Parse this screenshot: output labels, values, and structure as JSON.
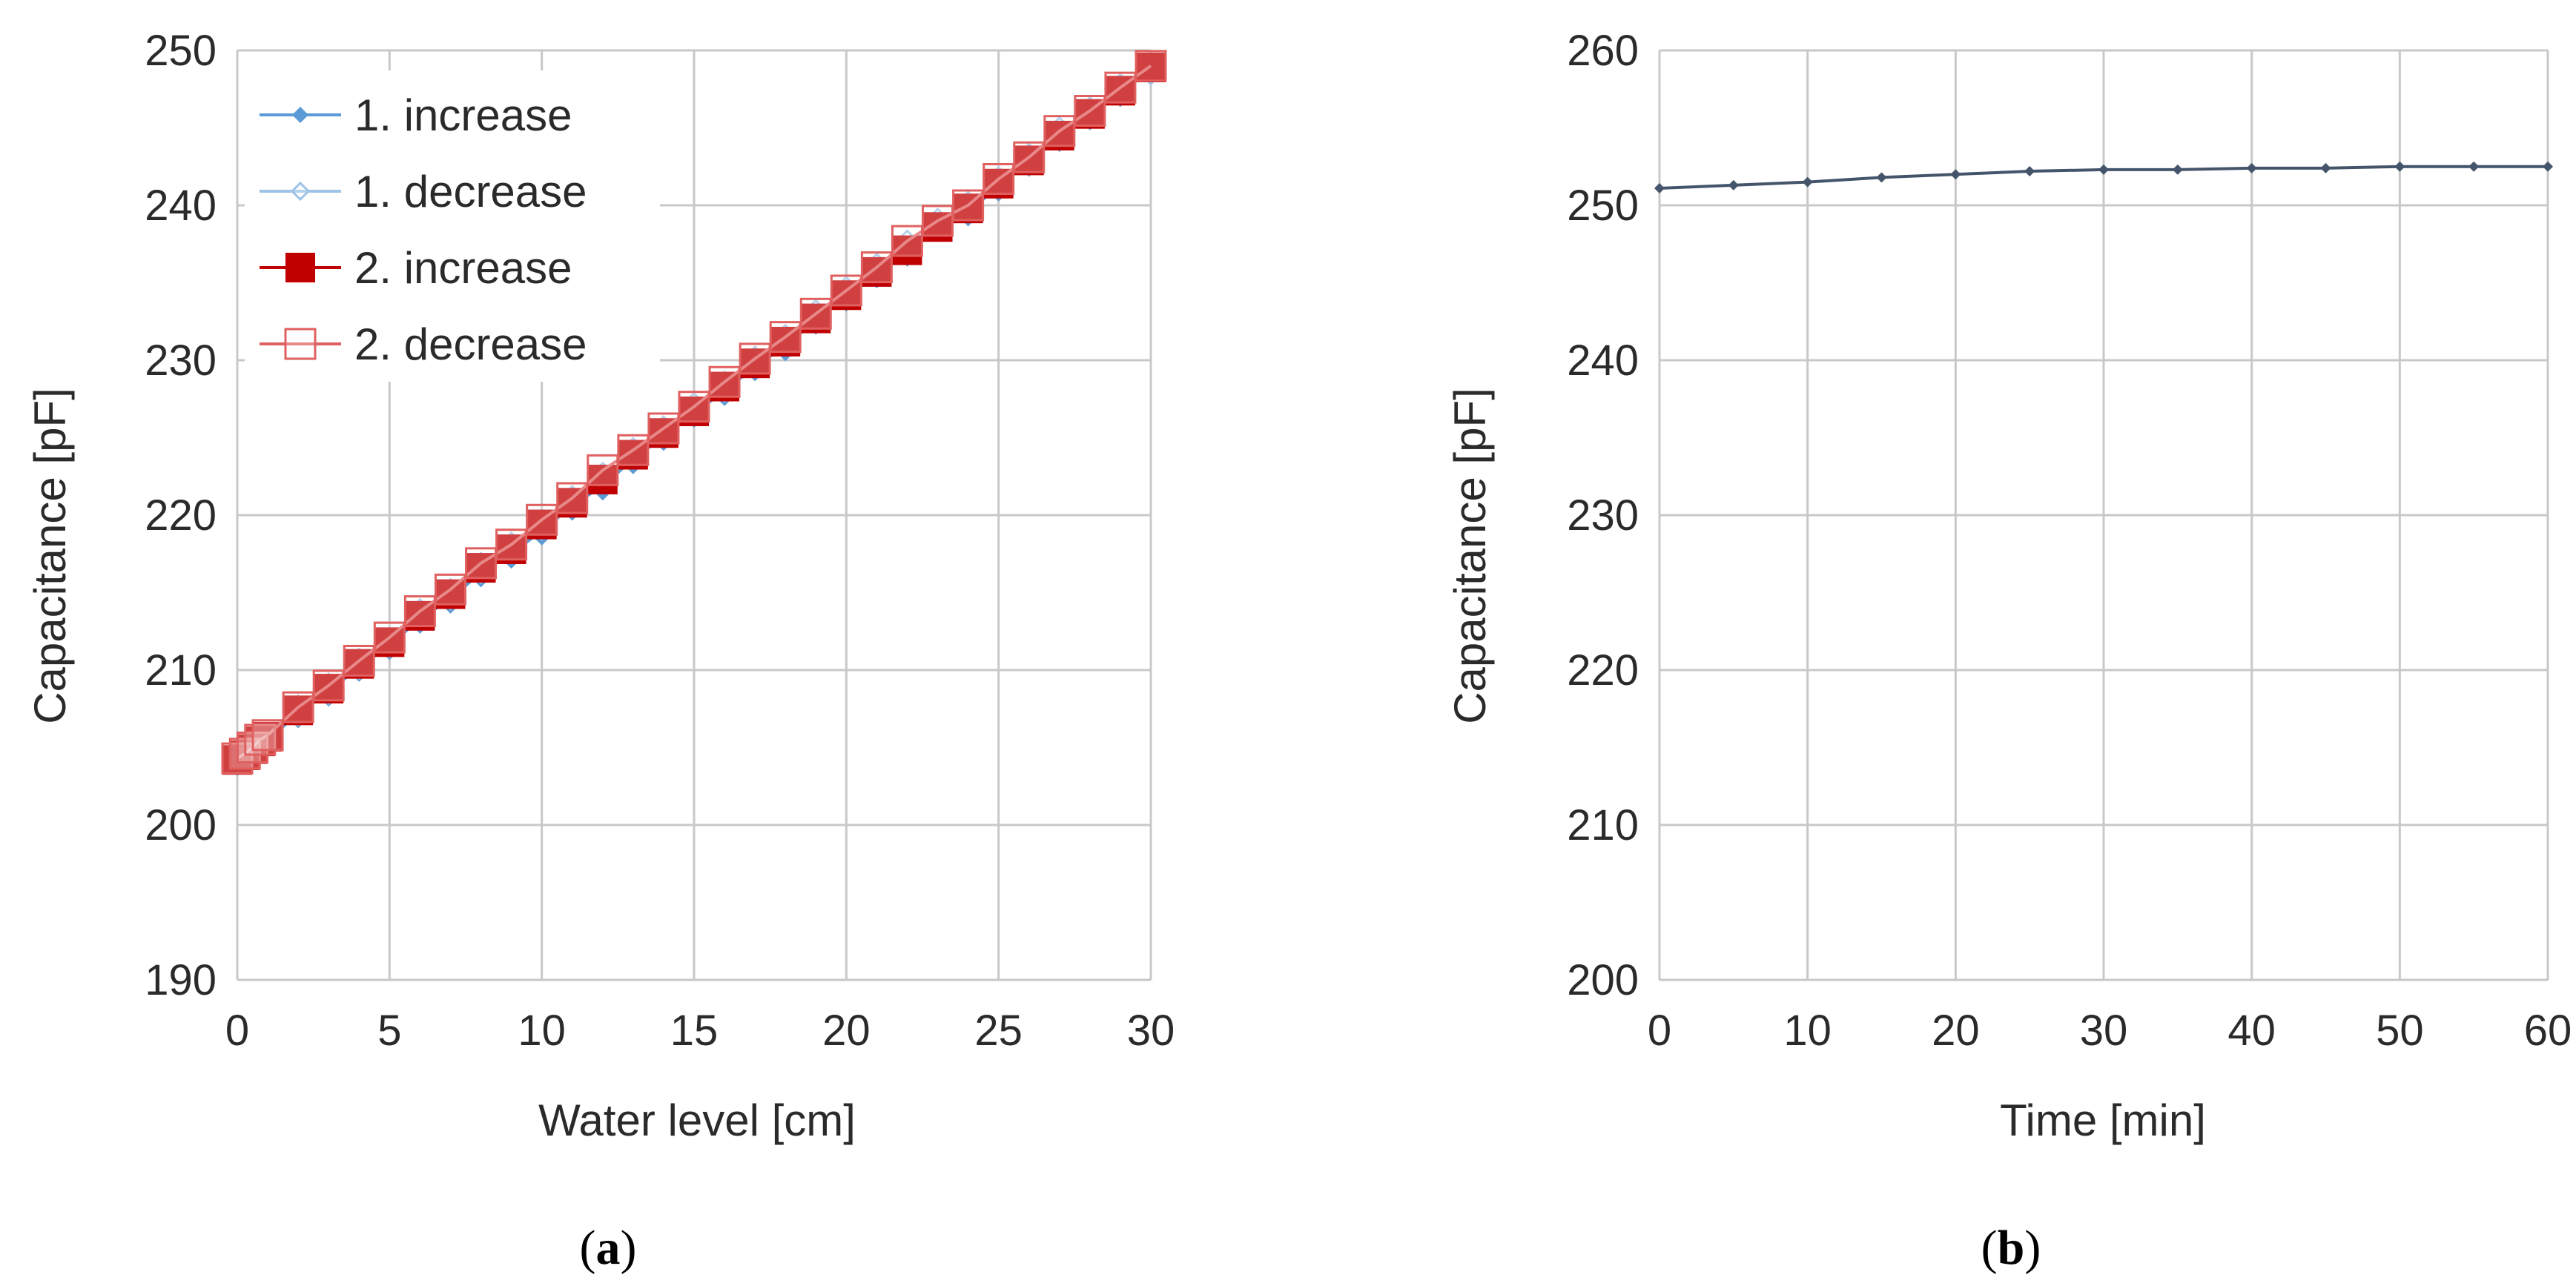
{
  "chart_data": [
    {
      "panel": "a",
      "type": "line",
      "title": "",
      "xlabel": "Water level [cm]",
      "ylabel": "Capacitance [pF]",
      "xlim": [
        0,
        30
      ],
      "ylim": [
        190,
        250
      ],
      "xticks": [
        0,
        5,
        10,
        15,
        20,
        25,
        30
      ],
      "yticks": [
        190,
        200,
        210,
        220,
        230,
        240,
        250
      ],
      "grid": true,
      "legend_position": "top-left",
      "series": [
        {
          "name": "1. increase",
          "color": "#5b9bd5",
          "marker": "filled-diamond",
          "x": [
            0,
            0.25,
            0.5,
            0.75,
            1,
            2,
            3,
            4,
            5,
            6,
            7,
            8,
            9,
            10,
            11,
            12,
            13,
            14,
            15,
            16,
            17,
            18,
            19,
            20,
            21,
            22,
            23,
            24,
            25,
            26,
            27,
            28,
            29,
            30
          ],
          "y": [
            204.1,
            204.3,
            204.7,
            205.1,
            205.5,
            207.2,
            208.6,
            210.2,
            211.6,
            213.3,
            214.6,
            216.3,
            217.5,
            219.0,
            220.6,
            221.9,
            223.6,
            225.1,
            226.6,
            228.0,
            229.6,
            230.9,
            232.6,
            234.1,
            235.6,
            237.0,
            238.6,
            239.6,
            241.2,
            242.8,
            244.4,
            245.8,
            247.3,
            248.7
          ]
        },
        {
          "name": "1. decrease",
          "color": "#9dc3e6",
          "marker": "open-diamond",
          "x": [
            0,
            0.25,
            0.5,
            0.75,
            1,
            2,
            3,
            4,
            5,
            6,
            7,
            8,
            9,
            10,
            11,
            12,
            13,
            14,
            15,
            16,
            17,
            18,
            19,
            20,
            21,
            22,
            23,
            24,
            25,
            26,
            27,
            28,
            29,
            30
          ],
          "y": [
            204.2,
            204.4,
            204.8,
            205.3,
            205.6,
            207.4,
            208.8,
            210.4,
            211.8,
            213.6,
            214.9,
            216.6,
            217.9,
            219.4,
            220.9,
            222.4,
            224.0,
            225.4,
            226.9,
            228.3,
            229.9,
            231.3,
            232.9,
            234.4,
            235.9,
            237.4,
            238.8,
            239.9,
            241.5,
            243.0,
            244.7,
            246.0,
            247.5,
            248.8
          ]
        },
        {
          "name": "2. increase",
          "color": "#c00000",
          "marker": "filled-square",
          "x": [
            0,
            0.25,
            0.5,
            0.75,
            1,
            2,
            3,
            4,
            5,
            6,
            7,
            8,
            9,
            10,
            11,
            12,
            13,
            14,
            15,
            16,
            17,
            18,
            19,
            20,
            21,
            22,
            23,
            24,
            25,
            26,
            27,
            28,
            29,
            30
          ],
          "y": [
            204.2,
            204.5,
            204.9,
            205.4,
            205.7,
            207.4,
            208.8,
            210.4,
            211.8,
            213.5,
            214.9,
            216.6,
            217.8,
            219.4,
            220.8,
            222.3,
            223.9,
            225.3,
            226.7,
            228.3,
            229.8,
            231.2,
            232.7,
            234.2,
            235.7,
            237.1,
            238.6,
            239.8,
            241.4,
            242.9,
            244.5,
            245.9,
            247.4,
            248.9
          ]
        },
        {
          "name": "2. decrease",
          "color": "#e06060",
          "marker": "open-square",
          "x": [
            0,
            0.25,
            0.5,
            0.75,
            1,
            2,
            3,
            4,
            5,
            6,
            7,
            8,
            9,
            10,
            11,
            12,
            13,
            14,
            15,
            16,
            17,
            18,
            19,
            20,
            21,
            22,
            23,
            24,
            25,
            26,
            27,
            28,
            29,
            30
          ],
          "y": [
            204.3,
            204.6,
            205.0,
            205.5,
            205.8,
            207.6,
            209.0,
            210.6,
            212.1,
            213.8,
            215.2,
            216.9,
            218.1,
            219.7,
            221.1,
            222.9,
            224.2,
            225.6,
            227.0,
            228.6,
            230.1,
            231.5,
            233.0,
            234.5,
            236.0,
            237.7,
            239.0,
            240.0,
            241.7,
            243.1,
            244.8,
            246.1,
            247.6,
            249.0
          ]
        }
      ]
    },
    {
      "panel": "b",
      "type": "line",
      "title": "",
      "xlabel": "Time [min]",
      "ylabel": "Capacitance [pF]",
      "xlim": [
        0,
        60
      ],
      "ylim": [
        200,
        260
      ],
      "xticks": [
        0,
        10,
        20,
        30,
        40,
        50,
        60
      ],
      "yticks": [
        200,
        210,
        220,
        230,
        240,
        250,
        260
      ],
      "grid": true,
      "series": [
        {
          "color": "#44546a",
          "marker": "filled-diamond",
          "x": [
            0,
            5,
            10,
            15,
            20,
            25,
            30,
            35,
            40,
            45,
            50,
            55,
            60
          ],
          "y": [
            251.1,
            251.3,
            251.5,
            251.8,
            252.0,
            252.2,
            252.3,
            252.3,
            252.4,
            252.4,
            252.5,
            252.5,
            252.5
          ]
        }
      ]
    }
  ],
  "panel_labels": {
    "a": {
      "open": "(",
      "letter": "a",
      "close": ")"
    },
    "b": {
      "open": "(",
      "letter": "b",
      "close": ")"
    }
  }
}
